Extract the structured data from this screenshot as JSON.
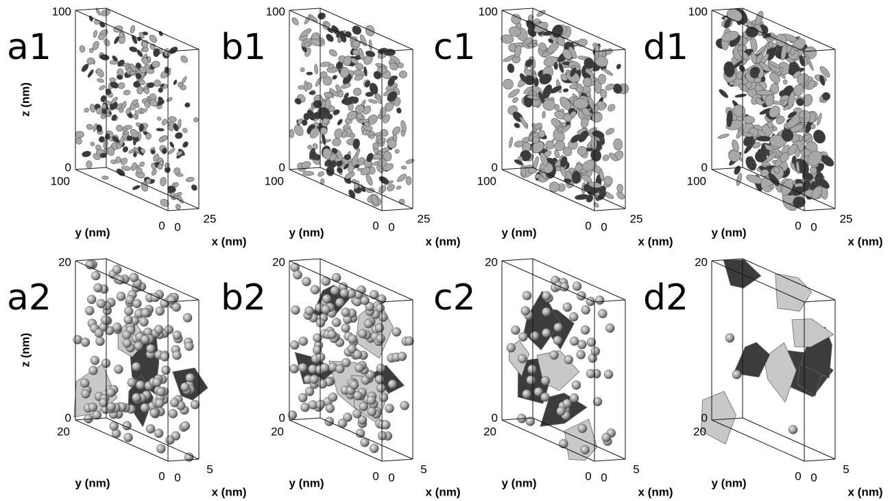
{
  "panels": [
    {
      "label": "a1",
      "z_ticks": [
        "100",
        "0"
      ],
      "y_ticks": [
        "100",
        "0"
      ],
      "x_ticks": [
        "0",
        "25"
      ],
      "z_label": "z (nm)",
      "y_label": "y (nm)",
      "x_label": "x (nm)"
    },
    {
      "label": "b1",
      "z_ticks": [
        "100",
        "0"
      ],
      "y_ticks": [
        "100",
        "0"
      ],
      "x_ticks": [
        "0",
        "25"
      ],
      "y_label": "y (nm)",
      "x_label": "x (nm)"
    },
    {
      "label": "c1",
      "z_ticks": [
        "100",
        "0"
      ],
      "y_ticks": [
        "100",
        "0"
      ],
      "x_ticks": [
        "0",
        "25"
      ],
      "y_label": "y (nm)",
      "x_label": "x (nm)"
    },
    {
      "label": "d1",
      "z_ticks": [
        "100",
        "0"
      ],
      "y_ticks": [
        "100",
        "0"
      ],
      "x_ticks": [
        "0",
        "25"
      ],
      "y_label": "y (nm)",
      "x_label": "x (nm)"
    },
    {
      "label": "a2",
      "z_ticks": [
        "20",
        "0"
      ],
      "y_ticks": [
        "20",
        "0"
      ],
      "x_ticks": [
        "0",
        "5"
      ],
      "z_label": "z (nm)",
      "y_label": "y (nm)",
      "x_label": "x (nm)"
    },
    {
      "label": "b2",
      "z_ticks": [
        "20",
        "0"
      ],
      "y_ticks": [
        "20",
        "0"
      ],
      "x_ticks": [
        "0",
        "5"
      ],
      "y_label": "y (nm)",
      "x_label": "x (nm)"
    },
    {
      "label": "c2",
      "z_ticks": [
        "20",
        "0"
      ],
      "y_ticks": [
        "20",
        "0"
      ],
      "x_ticks": [
        "0",
        "5"
      ],
      "y_label": "y (nm)",
      "x_label": "x (nm)"
    },
    {
      "label": "d2",
      "z_ticks": [
        "20",
        "0"
      ],
      "y_ticks": [
        "20",
        "0"
      ],
      "x_ticks": [
        "0",
        "5"
      ],
      "y_label": "y (nm)",
      "x_label": "x (nm)"
    }
  ]
}
